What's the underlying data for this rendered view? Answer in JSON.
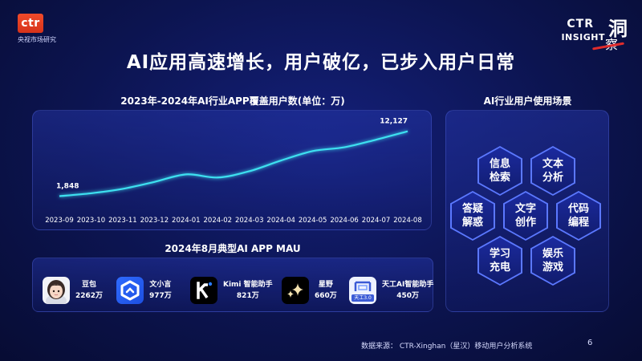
{
  "header": {
    "logo_text": "ctr",
    "logo_subtitle": "央视市场研究",
    "brand_ctr": "CTR",
    "brand_insight": "INSIGHT",
    "brand_cn_1": "洞",
    "brand_cn_2": "察",
    "title": "AI应用高速增长，用户破亿，已步入用户日常"
  },
  "chart_section_title": "2023年-2024年AI行业APP覆盖用户数(单位：万)",
  "chart_data": {
    "type": "line",
    "title": "2023年-2024年AI行业APP覆盖用户数(单位：万)",
    "unit": "万",
    "x": [
      "2023-09",
      "2023-10",
      "2023-11",
      "2023-12",
      "2024-01",
      "2024-02",
      "2024-03",
      "2024-04",
      "2024-05",
      "2024-06",
      "2024-07",
      "2024-08"
    ],
    "values": [
      1848,
      2300,
      3000,
      4100,
      5300,
      4800,
      5800,
      7500,
      9000,
      9600,
      10800,
      12127
    ],
    "labeled_points": {
      "first": "1,848",
      "last": "12,127"
    },
    "ylim": [
      0,
      14000
    ],
    "grid": false,
    "color": "#3ee0f0"
  },
  "mau_section_title": "2024年8月典型AI APP MAU",
  "apps": [
    {
      "name": "豆包",
      "mau": "2262万",
      "icon": "doubao-avatar-icon"
    },
    {
      "name": "文小言",
      "mau": "977万",
      "icon": "wenxiaoyan-icon"
    },
    {
      "name": "Kimi 智能助手",
      "mau": "821万",
      "icon": "kimi-icon"
    },
    {
      "name": "星野",
      "mau": "660万",
      "icon": "xingye-sparkle-icon"
    },
    {
      "name": "天工AI智能助手",
      "mau": "450万",
      "icon": "tiangong-icon",
      "icon_badge": "天工3.0"
    }
  ],
  "scene_section_title": "AI行业用户使用场景",
  "scenes": [
    {
      "line1": "信息",
      "line2": "检索"
    },
    {
      "line1": "文本",
      "line2": "分析"
    },
    {
      "line1": "答疑",
      "line2": "解惑"
    },
    {
      "line1": "文字",
      "line2": "创作"
    },
    {
      "line1": "代码",
      "line2": "编程"
    },
    {
      "line1": "学习",
      "line2": "充电"
    },
    {
      "line1": "娱乐",
      "line2": "游戏"
    }
  ],
  "footer": {
    "source": "数据来源： CTR-Xinghan（星汉）移动用户分析系统",
    "page": "6"
  }
}
